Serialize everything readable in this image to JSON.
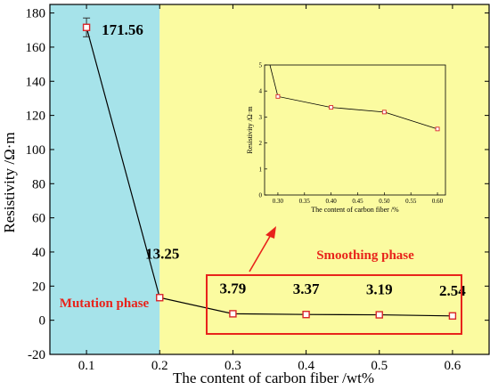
{
  "chart_data": [
    {
      "type": "line",
      "xlabel": "The content of carbon fiber /wt%",
      "ylabel": "Resistivity /Ω·m",
      "xlim": [
        0.05,
        0.65
      ],
      "ylim": [
        -20,
        185
      ],
      "x_ticks": [
        0.1,
        0.2,
        0.3,
        0.4,
        0.5,
        0.6
      ],
      "y_ticks": [
        -20,
        0,
        20,
        40,
        60,
        80,
        100,
        120,
        140,
        160,
        180
      ],
      "series": [
        {
          "x": [
            0.1,
            0.2,
            0.3,
            0.4,
            0.5,
            0.6
          ],
          "values": [
            171.56,
            13.25,
            3.79,
            3.37,
            3.19,
            2.54
          ],
          "errors": [
            5.5,
            0.8,
            0.3,
            0.3,
            0.3,
            0.3
          ]
        }
      ],
      "data_labels": [
        "171.56",
        "13.25",
        "3.79",
        "3.37",
        "3.19",
        "2.54"
      ],
      "regions": [
        {
          "label": "Mutation phase",
          "x_range": [
            0.05,
            0.2
          ],
          "color": "#a6e3ea"
        },
        {
          "label": "Smoothing phase",
          "x_range": [
            0.2,
            0.65
          ],
          "color": "#fbfba0"
        }
      ],
      "accent_color": "#e8231b",
      "grid": false
    },
    {
      "type": "line",
      "role": "inset",
      "xlabel": "The content of carbon fiber /%",
      "ylabel": "Resistivity /Ω·m",
      "xlim": [
        0.275,
        0.615
      ],
      "ylim": [
        0,
        5
      ],
      "x_ticks": [
        "0.30",
        "0.35",
        "0.40",
        "0.45",
        "0.50",
        "0.55",
        "0.60"
      ],
      "y_ticks": [
        0,
        1,
        2,
        3,
        4,
        5
      ],
      "series": [
        {
          "x": [
            0.285,
            0.3,
            0.4,
            0.5,
            0.6
          ],
          "values": [
            5.0,
            3.79,
            3.37,
            3.19,
            2.54
          ]
        }
      ]
    }
  ]
}
